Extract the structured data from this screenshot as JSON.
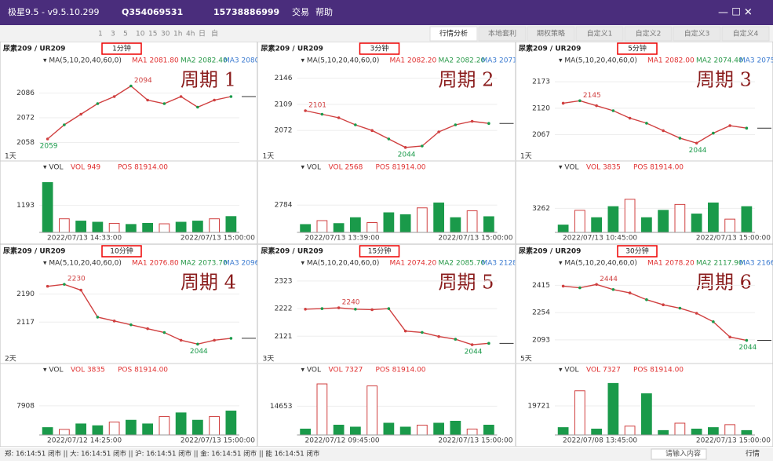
{
  "titlebar": {
    "app": "极星9.5 - v9.5.10.299",
    "user": "Q354069531",
    "phone": "15738886999",
    "menu": [
      "交易",
      "帮助"
    ]
  },
  "toolbar": {
    "intervals": [
      "1",
      "3",
      "5",
      "10",
      "15",
      "30",
      "1h",
      "4h",
      "日",
      "自"
    ],
    "tabs": [
      "行情分析",
      "本地套利",
      "期权策略",
      "自定义1",
      "自定义2",
      "自定义3",
      "自定义4"
    ]
  },
  "panels": [
    {
      "title": "尿素209 / UR209",
      "period": "1分钟",
      "label": "周期 1",
      "ma_params": "▾ MA(5,10,20,40,60,0)",
      "ma1": "MA1 2081.80",
      "ma2": "MA2 2082.40",
      "ma3": "MA3 2080.6",
      "high": "2094",
      "low": "2059",
      "span": "1天",
      "vol_name": "▾ VOL",
      "vol": "VOL 949",
      "pos": "POS 81914.00",
      "start": "2022/07/13 14:33:00",
      "end": "2022/07/13 15:00:00",
      "ylim": [
        2052,
        2100
      ],
      "yticks": [
        2058,
        2072,
        2086
      ],
      "price": [
        2060,
        2068,
        2074,
        2080,
        2084,
        2090,
        2082,
        2080,
        2084,
        2078,
        2082,
        2084
      ],
      "vlim": [
        0,
        2600
      ],
      "vticks": [
        1193
      ],
      "volume": [
        2200,
        600,
        500,
        450,
        400,
        350,
        400,
        380,
        450,
        500,
        600,
        700
      ]
    },
    {
      "title": "尿素209 / UR209",
      "period": "3分钟",
      "label": "周期 2",
      "ma_params": "▾ MA(5,10,20,40,60,0)",
      "ma1": "MA1 2082.20",
      "ma2": "MA2 2082.20",
      "ma3": "MA3 2071.9",
      "high": "2101",
      "low": "2044",
      "span": "1天",
      "vol_name": "▾ VOL",
      "vol": "VOL 2568",
      "pos": "POS 81914.00",
      "start": "2022/07/13 13:39:00",
      "end": "2022/07/13 15:00:00",
      "ylim": [
        2040,
        2160
      ],
      "yticks": [
        2072,
        2109,
        2146
      ],
      "price": [
        2100,
        2095,
        2090,
        2080,
        2072,
        2060,
        2048,
        2050,
        2070,
        2080,
        2085,
        2082
      ],
      "vlim": [
        0,
        6000
      ],
      "vticks": [
        2784
      ],
      "volume": [
        800,
        1200,
        900,
        1500,
        1000,
        2000,
        1800,
        2500,
        3000,
        1500,
        2200,
        1600
      ]
    },
    {
      "title": "尿素209 / UR209",
      "period": "5分钟",
      "label": "周期 3",
      "ma_params": "▾ MA(5,10,20,40,60,0)",
      "ma1": "MA1 2082.00",
      "ma2": "MA2 2074.40",
      "ma3": "MA3 2075.65",
      "high": "2145",
      "low": "2044",
      "span": "1天",
      "vol_name": "▾ VOL",
      "vol": "VOL 3835",
      "pos": "POS 81914.00",
      "start": "2022/07/13 10:45:00",
      "end": "2022/07/13 15:00:00",
      "ylim": [
        2030,
        2200
      ],
      "yticks": [
        2067,
        2120,
        2173
      ],
      "price": [
        2130,
        2135,
        2125,
        2115,
        2100,
        2090,
        2075,
        2060,
        2050,
        2070,
        2085,
        2080
      ],
      "vlim": [
        0,
        8000
      ],
      "vticks": [
        3262
      ],
      "volume": [
        1000,
        3000,
        2000,
        3500,
        4500,
        2000,
        3000,
        3800,
        2500,
        4000,
        1800,
        3500
      ]
    },
    {
      "title": "尿素209 / UR209",
      "period": "10分钟",
      "label": "周期 4",
      "ma_params": "▾ MA(5,10,20,40,60,0)",
      "ma1": "MA1 2076.80",
      "ma2": "MA2 2073.70",
      "ma3": "MA3 2096.4",
      "high": "2230",
      "low": "2044",
      "span": "2天",
      "vol_name": "▾ VOL",
      "vol": "VOL 3835",
      "pos": "POS 81914.00",
      "start": "2022/07/12 14:25:00",
      "end": "2022/07/13 15:00:00",
      "ylim": [
        2030,
        2250
      ],
      "yticks": [
        2117,
        2190
      ],
      "price": [
        2210,
        2215,
        2200,
        2130,
        2120,
        2110,
        2100,
        2090,
        2070,
        2060,
        2070,
        2075
      ],
      "vlim": [
        0,
        16000
      ],
      "vticks": [
        7908
      ],
      "volume": [
        2000,
        1500,
        3000,
        2500,
        3500,
        4000,
        3000,
        5000,
        6000,
        4000,
        5000,
        6500
      ]
    },
    {
      "title": "尿素209 / UR209",
      "period": "15分钟",
      "label": "周期 5",
      "ma_params": "▾ MA(5,10,20,40,60,0)",
      "ma1": "MA1 2074.20",
      "ma2": "MA2 2085.70",
      "ma3": "MA3 2128.3",
      "high": "2240",
      "low": "2044",
      "span": "3天",
      "vol_name": "▾ VOL",
      "vol": "VOL 7327",
      "pos": "POS 81914.00",
      "start": "2022/07/12 09:45:00",
      "end": "2022/07/13 15:00:00",
      "ylim": [
        2050,
        2360
      ],
      "yticks": [
        2121,
        2222,
        2323
      ],
      "price": [
        2220,
        2222,
        2225,
        2220,
        2218,
        2222,
        2140,
        2135,
        2120,
        2110,
        2090,
        2095
      ],
      "vlim": [
        0,
        30000
      ],
      "vticks": [
        14653
      ],
      "volume": [
        3000,
        26000,
        5000,
        4000,
        25000,
        6000,
        4000,
        5000,
        6000,
        7000,
        3000,
        5000
      ]
    },
    {
      "title": "尿素209 / UR209",
      "period": "30分钟",
      "label": "周期 6",
      "ma_params": "▾ MA(5,10,20,40,60,0)",
      "ma1": "MA1 2078.20",
      "ma2": "MA2 2117.90",
      "ma3": "MA3 2166.45",
      "high": "2444",
      "low": "2044",
      "span": "5天",
      "vol_name": "▾ VOL",
      "vol": "VOL 7327",
      "pos": "POS 81914.00",
      "start": "2022/07/08 13:45:00",
      "end": "2022/07/13 15:00:00",
      "ylim": [
        2000,
        2500
      ],
      "yticks": [
        2093,
        2254,
        2415
      ],
      "price": [
        2410,
        2400,
        2420,
        2390,
        2370,
        2330,
        2300,
        2280,
        2250,
        2200,
        2110,
        2090
      ],
      "vlim": [
        0,
        40000
      ],
      "vticks": [
        19721
      ],
      "volume": [
        5000,
        30000,
        4000,
        35000,
        6000,
        28000,
        3000,
        8000,
        4000,
        5000,
        7000,
        3000
      ]
    }
  ],
  "statusbar": {
    "markets": "郑: 16:14:51 闭市 || 大: 16:14:51 闭市 || 沪: 16:14:51 闭市 || 金: 16:14:51 闭市 || 能 16:14:51 闭市",
    "search": "请输入内容",
    "quote": "行情"
  }
}
